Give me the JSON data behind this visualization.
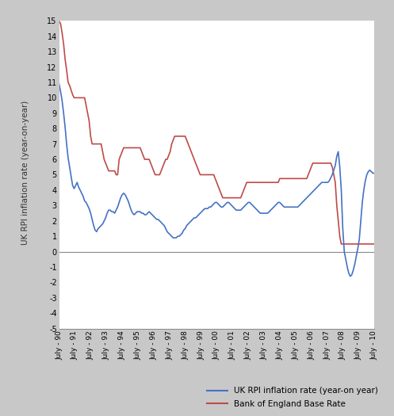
{
  "ylabel": "UK RPI inflation rate (year-on-year)",
  "ylim": [
    -5,
    15
  ],
  "x_labels": [
    "July - 90",
    "July - 91",
    "July - 92",
    "July - 93",
    "July - 94",
    "July - 95",
    "July - 96",
    "July - 97",
    "July - 98",
    "July - 99",
    "July - 00",
    "July - 01",
    "July - 02",
    "July - 03",
    "July - 04",
    "July - 05",
    "July - 06",
    "July - 07",
    "July - 08",
    "July - 09",
    "July - 10"
  ],
  "rpi_color": "#4472C4",
  "boe_color": "#BE4B48",
  "line_width": 1.2,
  "background_color": "#ffffff",
  "outer_background": "#c8c8c8",
  "legend_rpi": "UK RPI inflation rate (year-on year)",
  "legend_boe": "Bank of England Base Rate",
  "rpi_data": [
    10.9,
    10.4,
    9.8,
    9.0,
    8.1,
    7.0,
    6.1,
    5.5,
    4.9,
    4.3,
    4.1,
    4.3,
    4.5,
    4.2,
    4.0,
    3.8,
    3.6,
    3.3,
    3.2,
    3.0,
    2.8,
    2.5,
    2.1,
    1.7,
    1.4,
    1.3,
    1.5,
    1.6,
    1.7,
    1.8,
    2.0,
    2.2,
    2.5,
    2.7,
    2.7,
    2.6,
    2.6,
    2.5,
    2.7,
    2.9,
    3.2,
    3.5,
    3.7,
    3.8,
    3.7,
    3.5,
    3.3,
    3.0,
    2.7,
    2.5,
    2.4,
    2.5,
    2.6,
    2.6,
    2.6,
    2.5,
    2.5,
    2.4,
    2.4,
    2.5,
    2.6,
    2.5,
    2.4,
    2.3,
    2.2,
    2.1,
    2.1,
    2.0,
    1.9,
    1.8,
    1.7,
    1.5,
    1.3,
    1.2,
    1.1,
    1.0,
    0.9,
    0.9,
    0.9,
    1.0,
    1.0,
    1.1,
    1.2,
    1.4,
    1.5,
    1.7,
    1.8,
    1.9,
    2.0,
    2.1,
    2.2,
    2.2,
    2.3,
    2.4,
    2.5,
    2.6,
    2.7,
    2.8,
    2.8,
    2.8,
    2.9,
    2.9,
    3.0,
    3.1,
    3.2,
    3.2,
    3.1,
    3.0,
    2.9,
    2.9,
    3.0,
    3.1,
    3.2,
    3.2,
    3.1,
    3.0,
    2.9,
    2.8,
    2.7,
    2.7,
    2.7,
    2.7,
    2.8,
    2.9,
    3.0,
    3.1,
    3.2,
    3.2,
    3.1,
    3.0,
    2.9,
    2.8,
    2.7,
    2.6,
    2.5,
    2.5,
    2.5,
    2.5,
    2.5,
    2.5,
    2.6,
    2.7,
    2.8,
    2.9,
    3.0,
    3.1,
    3.2,
    3.2,
    3.1,
    3.0,
    2.9,
    2.9,
    2.9,
    2.9,
    2.9,
    2.9,
    2.9,
    2.9,
    2.9,
    2.9,
    3.0,
    3.1,
    3.2,
    3.3,
    3.4,
    3.5,
    3.6,
    3.7,
    3.8,
    3.9,
    4.0,
    4.1,
    4.2,
    4.3,
    4.4,
    4.5,
    4.5,
    4.5,
    4.5,
    4.5,
    4.6,
    4.8,
    5.0,
    5.3,
    5.6,
    6.2,
    6.5,
    5.5,
    4.0,
    1.5,
    0.0,
    -0.5,
    -1.0,
    -1.4,
    -1.6,
    -1.5,
    -1.2,
    -0.8,
    -0.3,
    0.2,
    0.8,
    2.0,
    3.2,
    4.0,
    4.6,
    5.0,
    5.2,
    5.3,
    5.2,
    5.1,
    5.1
  ],
  "boe_data": [
    15.0,
    14.8,
    14.2,
    13.5,
    12.5,
    11.8,
    11.0,
    10.8,
    10.5,
    10.2,
    10.0,
    10.0,
    10.0,
    10.0,
    10.0,
    10.0,
    10.0,
    10.0,
    9.5,
    9.0,
    8.5,
    7.5,
    7.0,
    7.0,
    7.0,
    7.0,
    7.0,
    7.0,
    7.0,
    6.5,
    6.0,
    5.75,
    5.5,
    5.25,
    5.25,
    5.25,
    5.25,
    5.25,
    5.0,
    5.0,
    6.0,
    6.25,
    6.5,
    6.75,
    6.75,
    6.75,
    6.75,
    6.75,
    6.75,
    6.75,
    6.75,
    6.75,
    6.75,
    6.75,
    6.75,
    6.5,
    6.25,
    6.0,
    6.0,
    6.0,
    6.0,
    5.75,
    5.5,
    5.25,
    5.0,
    5.0,
    5.0,
    5.0,
    5.25,
    5.5,
    5.75,
    6.0,
    6.0,
    6.25,
    6.5,
    7.0,
    7.25,
    7.5,
    7.5,
    7.5,
    7.5,
    7.5,
    7.5,
    7.5,
    7.5,
    7.25,
    7.0,
    6.75,
    6.5,
    6.25,
    6.0,
    5.75,
    5.5,
    5.25,
    5.0,
    5.0,
    5.0,
    5.0,
    5.0,
    5.0,
    5.0,
    5.0,
    5.0,
    5.0,
    4.75,
    4.5,
    4.25,
    4.0,
    3.75,
    3.5,
    3.5,
    3.5,
    3.5,
    3.5,
    3.5,
    3.5,
    3.5,
    3.5,
    3.5,
    3.5,
    3.5,
    3.5,
    3.75,
    4.0,
    4.25,
    4.5,
    4.5,
    4.5,
    4.5,
    4.5,
    4.5,
    4.5,
    4.5,
    4.5,
    4.5,
    4.5,
    4.5,
    4.5,
    4.5,
    4.5,
    4.5,
    4.5,
    4.5,
    4.5,
    4.5,
    4.5,
    4.5,
    4.75,
    4.75,
    4.75,
    4.75,
    4.75,
    4.75,
    4.75,
    4.75,
    4.75,
    4.75,
    4.75,
    4.75,
    4.75,
    4.75,
    4.75,
    4.75,
    4.75,
    4.75,
    4.75,
    5.0,
    5.25,
    5.5,
    5.75,
    5.75,
    5.75,
    5.75,
    5.75,
    5.75,
    5.75,
    5.75,
    5.75,
    5.75,
    5.75,
    5.75,
    5.75,
    5.5,
    5.0,
    4.5,
    3.0,
    2.0,
    1.0,
    0.5,
    0.5,
    0.5,
    0.5,
    0.5,
    0.5,
    0.5,
    0.5,
    0.5,
    0.5,
    0.5,
    0.5,
    0.5,
    0.5,
    0.5,
    0.5,
    0.5,
    0.5,
    0.5,
    0.5,
    0.5,
    0.5,
    0.5
  ]
}
